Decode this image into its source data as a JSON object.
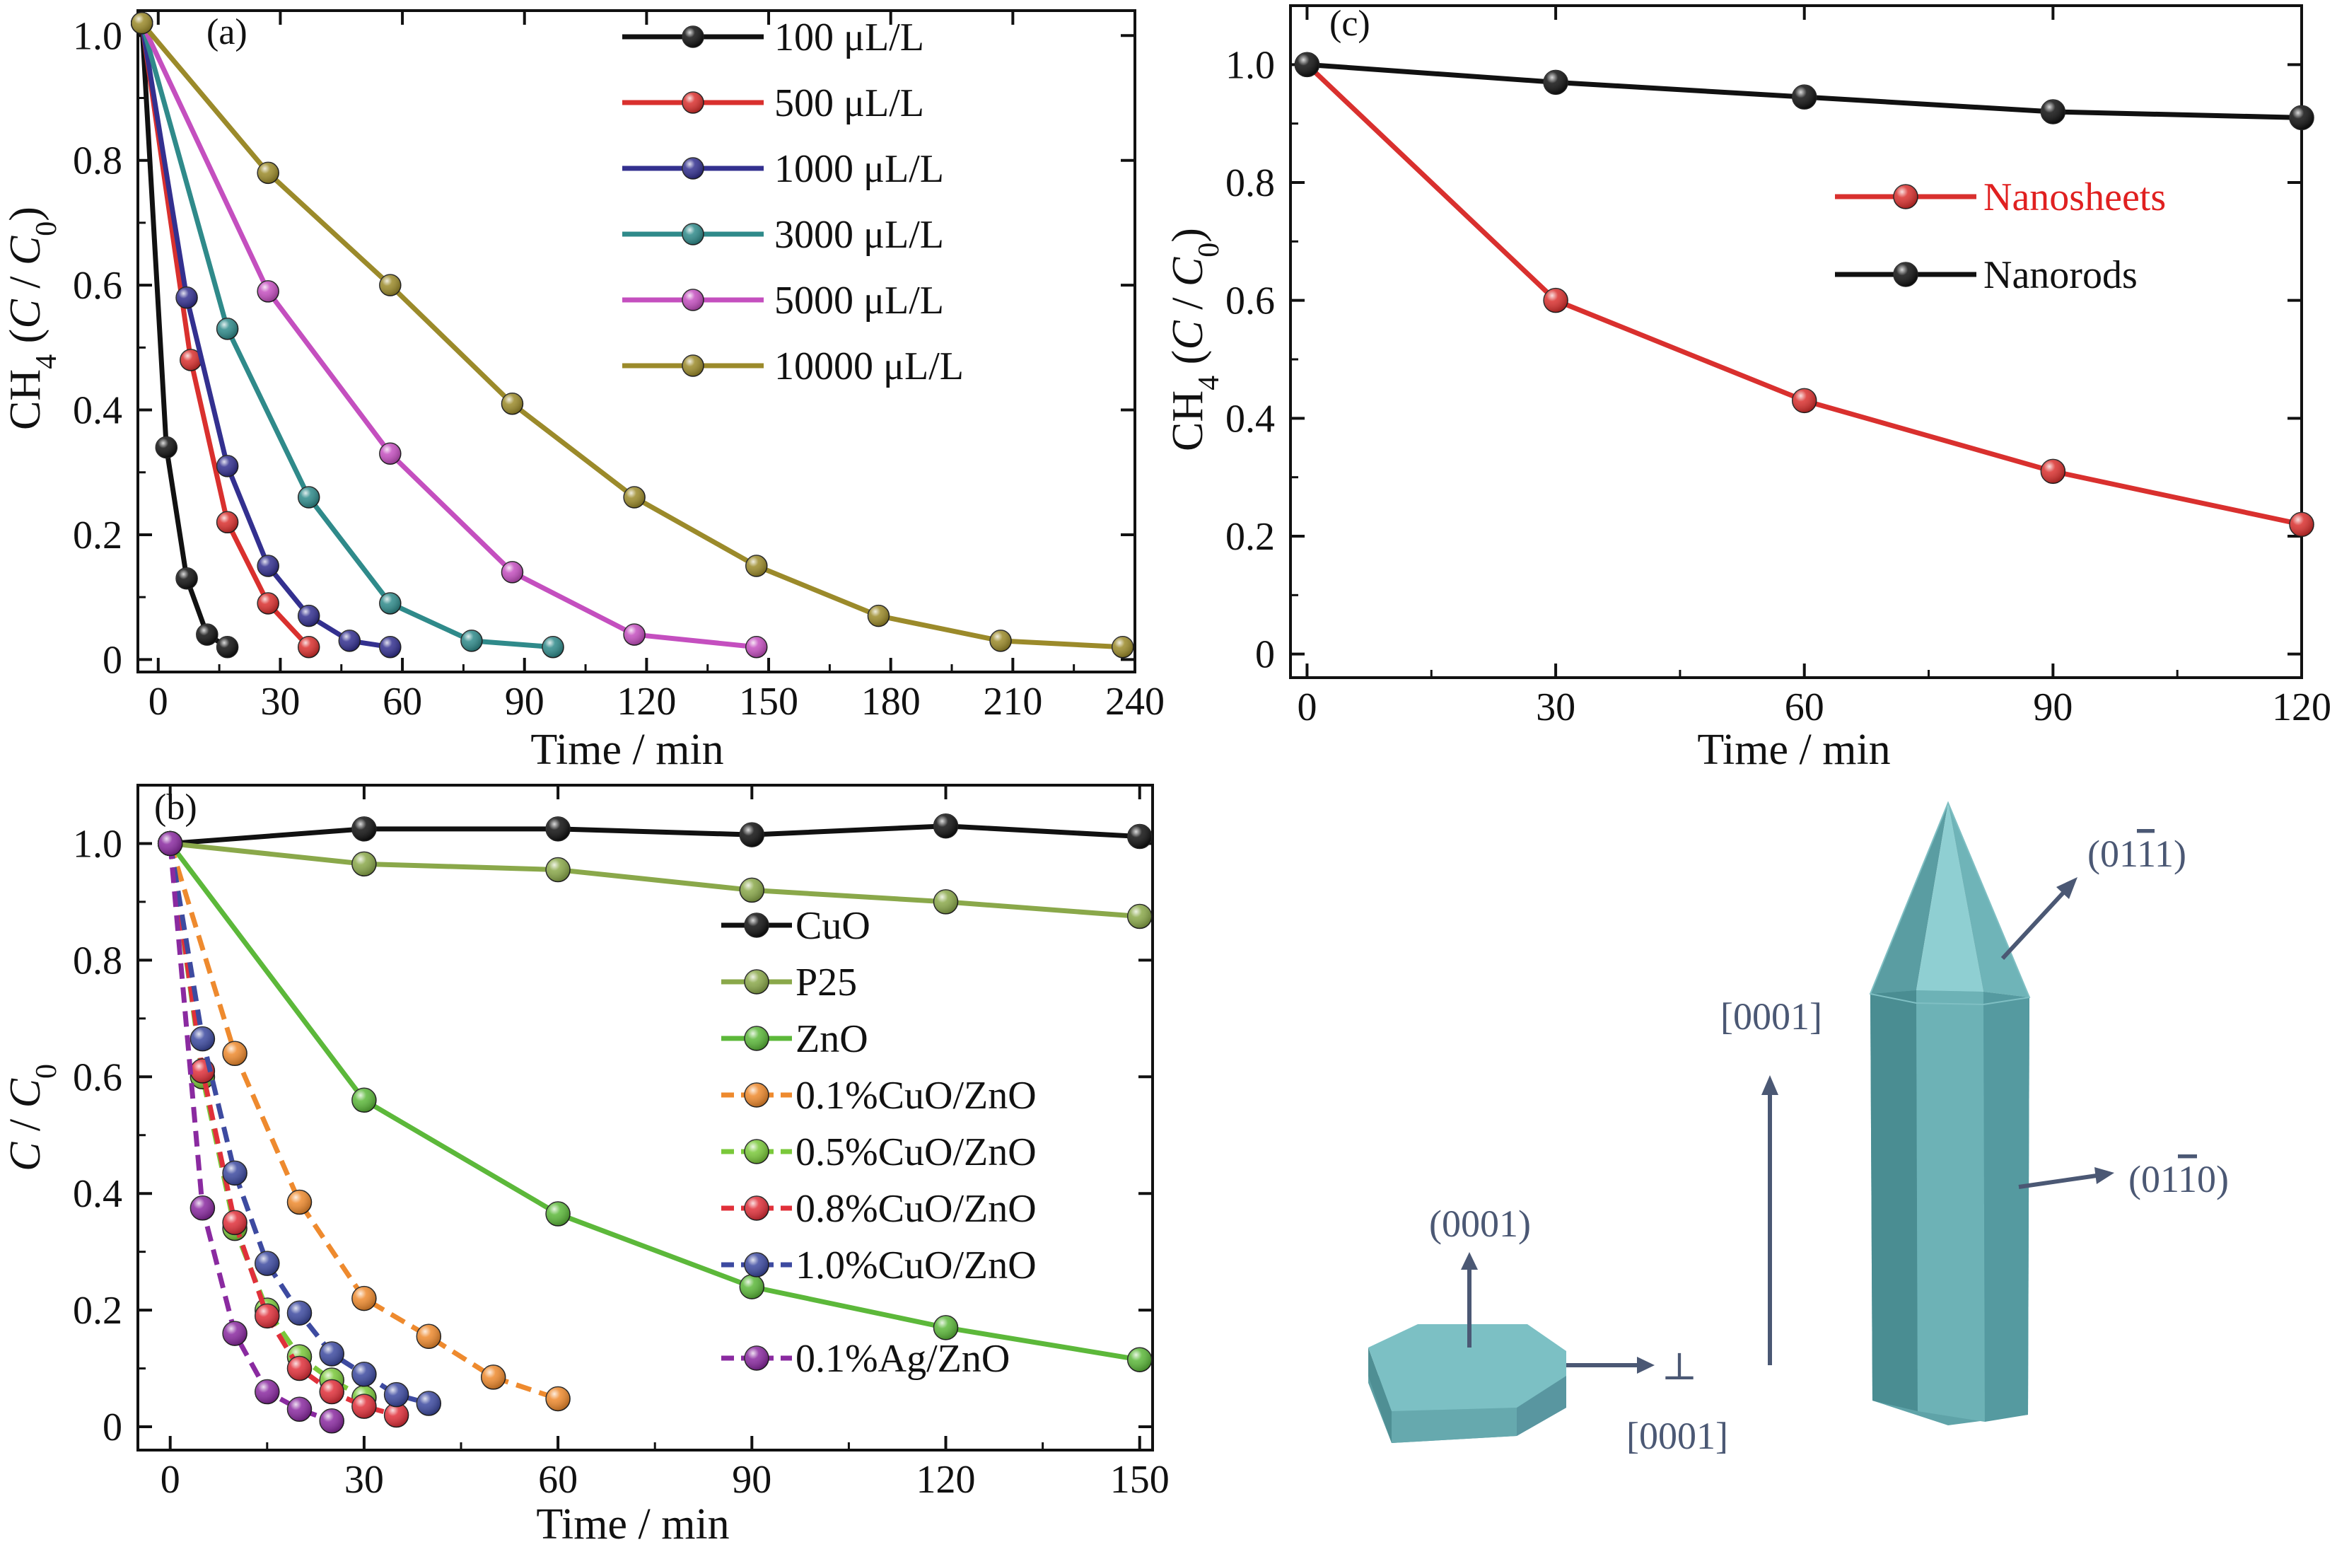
{
  "chart_data": [
    {
      "id": "a",
      "panel_label": "(a)",
      "type": "line",
      "xlabel": "Time / min",
      "ylabel_parts": [
        "CH",
        "4",
        " (",
        "C",
        " / ",
        "C",
        "0",
        ")"
      ],
      "xlim": [
        -5,
        240
      ],
      "ylim": [
        -0.02,
        1.04
      ],
      "xticks": [
        0,
        30,
        60,
        90,
        120,
        150,
        180,
        210,
        240
      ],
      "yticks": [
        0,
        0.2,
        0.4,
        0.6,
        0.8,
        1.0
      ],
      "ytick_labels": [
        "0",
        "0.2",
        "0.4",
        "0.6",
        "0.8",
        "1.0"
      ],
      "legend_position": "top-right",
      "series": [
        {
          "name": "100 μL/L",
          "color": "#111111",
          "dash": "solid",
          "x": [
            -4,
            2,
            7,
            12,
            17
          ],
          "y": [
            1.02,
            0.34,
            0.13,
            0.04,
            0.02
          ]
        },
        {
          "name": "500 μL/L",
          "color": "#d9302e",
          "dash": "solid",
          "x": [
            -4,
            8,
            17,
            27,
            37
          ],
          "y": [
            1.02,
            0.48,
            0.22,
            0.09,
            0.02
          ]
        },
        {
          "name": "1000 μL/L",
          "color": "#33308f",
          "dash": "solid",
          "x": [
            -4,
            7,
            17,
            27,
            37,
            47,
            57
          ],
          "y": [
            1.02,
            0.58,
            0.31,
            0.15,
            0.07,
            0.03,
            0.02
          ]
        },
        {
          "name": "3000 μL/L",
          "color": "#2f8a8a",
          "dash": "solid",
          "x": [
            -4,
            17,
            37,
            57,
            77,
            97
          ],
          "y": [
            1.02,
            0.53,
            0.26,
            0.09,
            0.03,
            0.02
          ]
        },
        {
          "name": "5000 μL/L",
          "color": "#c44fbf",
          "dash": "solid",
          "x": [
            -4,
            27,
            57,
            87,
            117,
            147
          ],
          "y": [
            1.02,
            0.59,
            0.33,
            0.14,
            0.04,
            0.02
          ]
        },
        {
          "name": "10000 μL/L",
          "color": "#9b8a2a",
          "dash": "solid",
          "x": [
            -4,
            27,
            57,
            87,
            117,
            147,
            177,
            207,
            237
          ],
          "y": [
            1.02,
            0.78,
            0.6,
            0.41,
            0.26,
            0.15,
            0.07,
            0.03,
            0.02
          ]
        }
      ]
    },
    {
      "id": "c",
      "panel_label": "(c)",
      "type": "line",
      "xlabel": "Time / min",
      "ylabel_parts": [
        "CH",
        "4",
        " (",
        "C",
        " / ",
        "C",
        "0",
        ")"
      ],
      "xlim": [
        -2,
        120
      ],
      "ylim": [
        -0.04,
        1.1
      ],
      "xticks": [
        0,
        30,
        60,
        90,
        120
      ],
      "yticks": [
        0,
        0.2,
        0.4,
        0.6,
        0.8,
        1.0
      ],
      "ytick_labels": [
        "0",
        "0.2",
        "0.4",
        "0.6",
        "0.8",
        "1.0"
      ],
      "legend_position": "upper-middle-right",
      "series": [
        {
          "name": "Nanosheets",
          "color": "#d9302e",
          "label_color": "#e02020",
          "dash": "solid",
          "x": [
            0,
            30,
            60,
            90,
            120
          ],
          "y": [
            1.0,
            0.6,
            0.43,
            0.31,
            0.22
          ]
        },
        {
          "name": "Nanorods",
          "color": "#111111",
          "label_color": "#111111",
          "dash": "solid",
          "x": [
            0,
            30,
            60,
            90,
            120
          ],
          "y": [
            1.0,
            0.97,
            0.945,
            0.92,
            0.91
          ]
        }
      ]
    },
    {
      "id": "b",
      "panel_label": "(b)",
      "type": "line",
      "xlabel": "Time / min",
      "ylabel_parts": [
        "",
        "",
        "",
        "C",
        " / ",
        "C",
        "0",
        ""
      ],
      "xlim": [
        -5,
        152
      ],
      "ylim": [
        -0.04,
        1.1
      ],
      "xticks": [
        0,
        30,
        60,
        90,
        120,
        150
      ],
      "yticks": [
        0,
        0.2,
        0.4,
        0.6,
        0.8,
        1.0
      ],
      "ytick_labels": [
        "0",
        "0.2",
        "0.4",
        "0.6",
        "0.8",
        "1.0"
      ],
      "legend_position": "center-right",
      "series": [
        {
          "name": "CuO",
          "color": "#111111",
          "dash": "solid",
          "x": [
            0,
            30,
            60,
            90,
            120,
            150
          ],
          "y": [
            1.0,
            1.025,
            1.025,
            1.015,
            1.03,
            1.012
          ]
        },
        {
          "name": "P25",
          "color": "#8aa84a",
          "dash": "solid",
          "x": [
            0,
            30,
            60,
            90,
            120,
            150
          ],
          "y": [
            1.0,
            0.965,
            0.955,
            0.92,
            0.9,
            0.875
          ]
        },
        {
          "name": "ZnO",
          "color": "#5cb83a",
          "dash": "solid",
          "x": [
            0,
            30,
            60,
            90,
            120,
            150
          ],
          "y": [
            1.0,
            0.56,
            0.365,
            0.24,
            0.17,
            0.115
          ]
        },
        {
          "name": "0.1%CuO/ZnO",
          "color": "#ee8a2e",
          "dash": "dashed",
          "x": [
            0,
            10,
            20,
            30,
            40,
            50,
            60
          ],
          "y": [
            1.0,
            0.64,
            0.385,
            0.22,
            0.155,
            0.085,
            0.048
          ]
        },
        {
          "name": "0.5%CuO/ZnO",
          "color": "#7ac83a",
          "dash": "dashed",
          "x": [
            0,
            5,
            10,
            15,
            20,
            25,
            30
          ],
          "y": [
            1.0,
            0.6,
            0.34,
            0.2,
            0.12,
            0.08,
            0.05
          ]
        },
        {
          "name": "0.8%CuO/ZnO",
          "color": "#e0303a",
          "dash": "dashed",
          "x": [
            0,
            5,
            10,
            15,
            20,
            25,
            30,
            35
          ],
          "y": [
            1.0,
            0.61,
            0.35,
            0.19,
            0.1,
            0.06,
            0.035,
            0.02
          ]
        },
        {
          "name": "1.0%CuO/ZnO",
          "color": "#3d4aa0",
          "dash": "dashed",
          "x": [
            0,
            5,
            10,
            15,
            20,
            25,
            30,
            35,
            40
          ],
          "y": [
            1.0,
            0.665,
            0.435,
            0.28,
            0.195,
            0.125,
            0.09,
            0.055,
            0.04
          ]
        },
        {
          "name": "0.1%Ag/ZnO",
          "color": "#8a2aa0",
          "dash": "dashed",
          "x": [
            0,
            5,
            10,
            15,
            20,
            25
          ],
          "y": [
            1.0,
            0.375,
            0.16,
            0.06,
            0.03,
            0.01
          ]
        }
      ]
    }
  ],
  "diagram": {
    "label_hex_top": "(0001)",
    "label_perp_prefix": "⊥",
    "label_perp_index": "[0001]",
    "label_vertical": "[0001]",
    "label_pyramid_pre": "(01",
    "label_pyramid_bar": "1",
    "label_pyramid_post": "1)",
    "label_prism_pre": "(01",
    "label_prism_bar": "1",
    "label_prism_post": "0)",
    "shape_color": "#6fb4b8",
    "label_color": "#4b5874"
  }
}
